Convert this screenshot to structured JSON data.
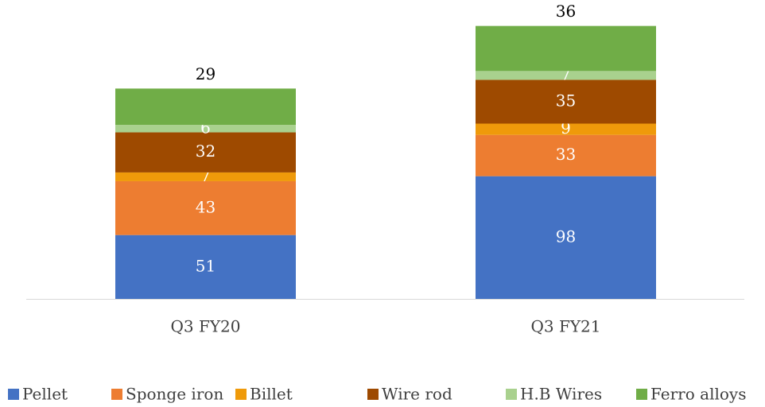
{
  "chart_data": {
    "type": "stacked_bar",
    "categories": [
      "Q3 FY20",
      "Q3 FY21"
    ],
    "series": [
      {
        "name": "Pellet",
        "color": "#4472c4",
        "values": [
          51,
          98
        ]
      },
      {
        "name": "Sponge iron",
        "color": "#ed7d31",
        "values": [
          43,
          33
        ]
      },
      {
        "name": "Billet",
        "color": "#ef9a0a",
        "values": [
          7,
          9
        ]
      },
      {
        "name": "Wire rod",
        "color": "#9e4a00",
        "values": [
          32,
          35
        ]
      },
      {
        "name": "H.B Wires",
        "color": "#a9d18e",
        "values": [
          6,
          7
        ]
      },
      {
        "name": "Ferro alloys",
        "color": "#70ad47",
        "values": [
          29,
          36
        ]
      }
    ],
    "legend": "bottom"
  }
}
